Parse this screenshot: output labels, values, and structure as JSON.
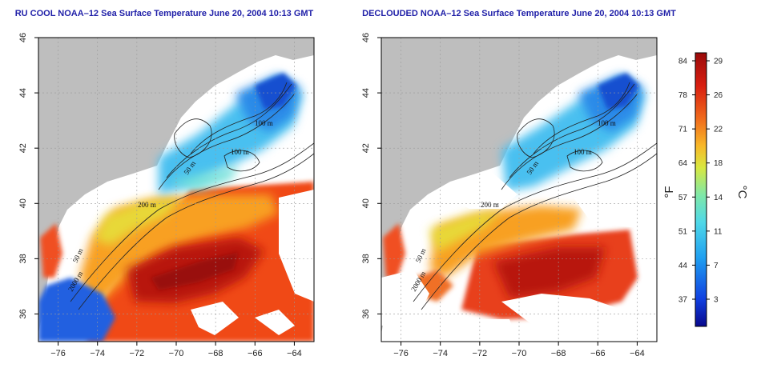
{
  "panels": [
    {
      "id": "rucool",
      "title": "RU COOL NOAA–12 Sea Surface Temperature June 20, 2004 10:13 GMT",
      "isobath_labels": [
        "100 m",
        "100 m",
        "50 m",
        "200 m",
        "50 m",
        "2000 m"
      ]
    },
    {
      "id": "decloud",
      "title": "DECLOUDED NOAA–12 Sea Surface Temperature June 20, 2004 10:13 GMT",
      "isobath_labels": [
        "100 m",
        "100 m",
        "50 m",
        "200 m",
        "50 m",
        "2000 m"
      ]
    }
  ],
  "axes": {
    "lon_ticks": [
      "−76",
      "−74",
      "−72",
      "−70",
      "−68",
      "−66",
      "−64"
    ],
    "lon_values": [
      -76,
      -74,
      -72,
      -70,
      -68,
      -66,
      -64
    ],
    "lon_range": [
      -77,
      -63
    ],
    "lat_ticks": [
      "36",
      "38",
      "40",
      "42",
      "44",
      "46"
    ],
    "lat_values": [
      36,
      38,
      40,
      42,
      44,
      46
    ],
    "lat_range": [
      35,
      46
    ]
  },
  "colorbar": {
    "fahrenheit_label": "°F",
    "celsius_label": "°C",
    "fahrenheit_ticks": [
      "84",
      "78",
      "71",
      "64",
      "57",
      "51",
      "44",
      "37"
    ],
    "celsius_ticks": [
      "29",
      "26",
      "22",
      "18",
      "14",
      "11",
      "7",
      "3"
    ],
    "colors": [
      "#08088c",
      "#1040e0",
      "#1f9ff0",
      "#4fd8e8",
      "#7fe8a8",
      "#d8e840",
      "#f8b828",
      "#f06a1c",
      "#d81e10",
      "#9a0a0a"
    ]
  },
  "colors": {
    "land": "#bebebe",
    "cloud": "#ffffff",
    "title": "#1f1fa8"
  }
}
